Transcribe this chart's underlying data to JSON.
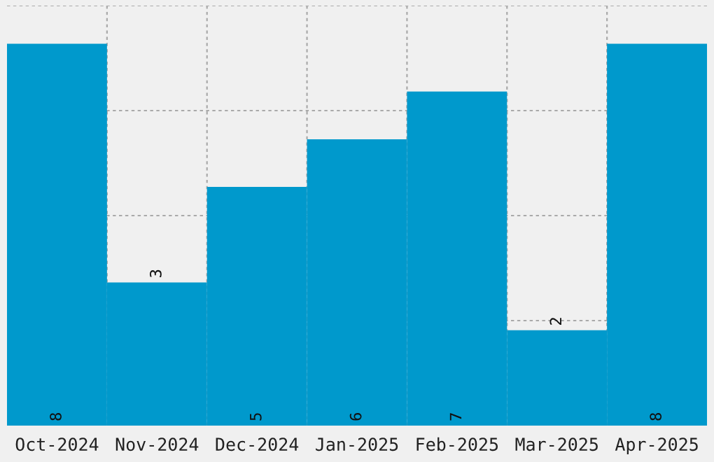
{
  "chart_data": {
    "type": "bar",
    "categories": [
      "Oct-2024",
      "Nov-2024",
      "Dec-2024",
      "Jan-2025",
      "Feb-2025",
      "Mar-2025",
      "Apr-2025"
    ],
    "values": [
      8,
      3,
      5,
      6,
      7,
      2,
      8
    ],
    "color": "#0099cc",
    "data_labels": true,
    "grid": true,
    "ylim": [
      0,
      8.8
    ],
    "yticks": [
      {
        "value": 2.2,
        "label": null
      },
      {
        "value": 4.4,
        "label": null
      },
      {
        "value": 6.6,
        "label": null
      },
      {
        "value": 8.8,
        "label": null
      }
    ]
  }
}
